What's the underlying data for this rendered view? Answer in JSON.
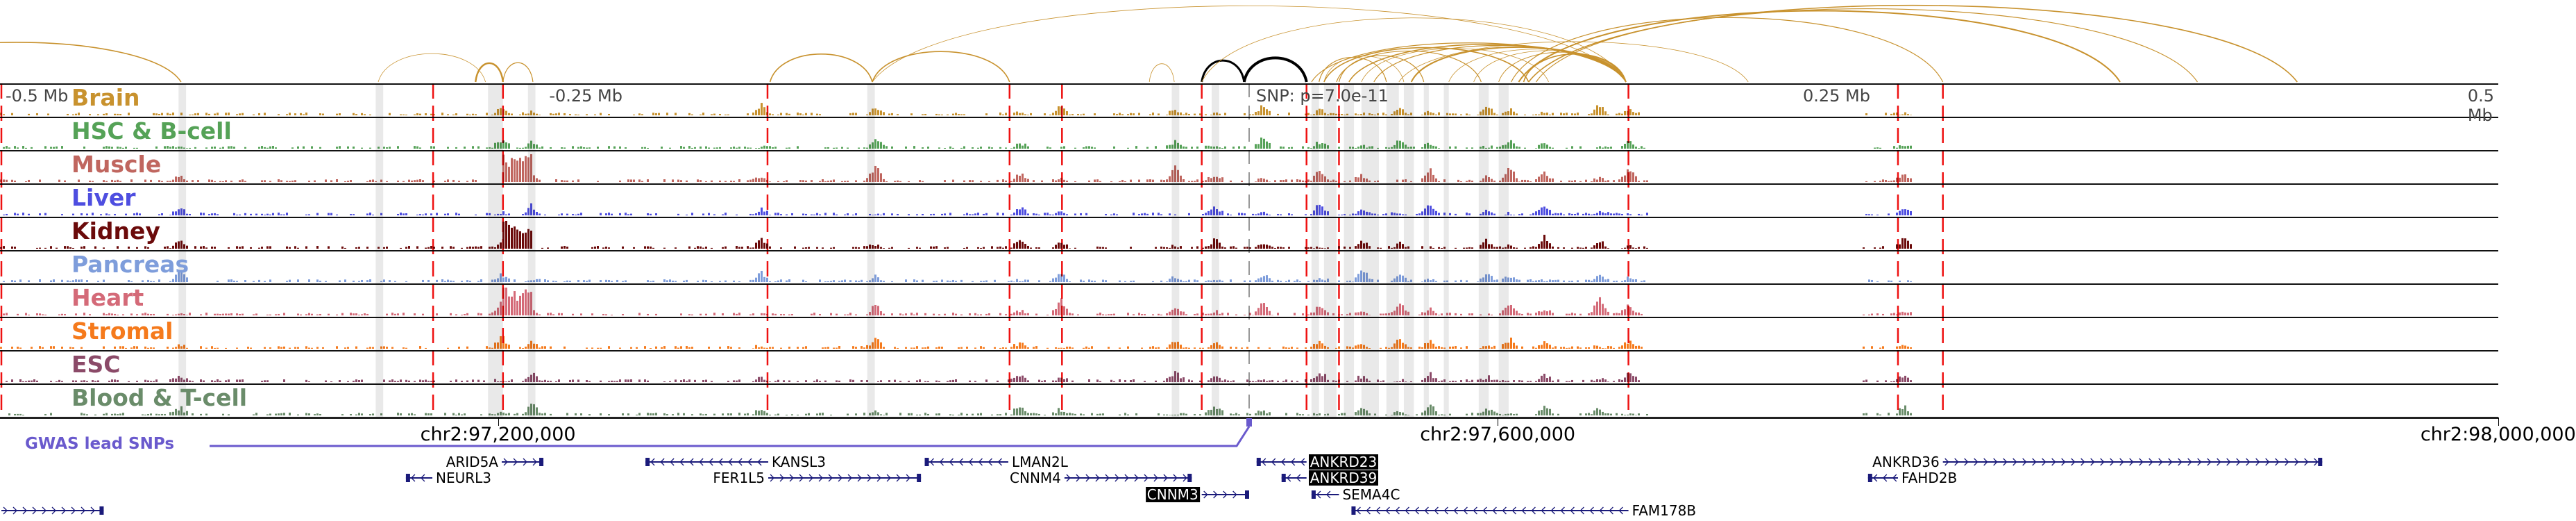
{
  "colors": {
    "arc": "#c8922e",
    "arc_lead": "#000000",
    "red_line": "#ee1111",
    "highlight": "#e3e3e3",
    "gene": "#1a1a7a",
    "gwas": "#6a5acd"
  },
  "ruler": {
    "labels": [
      {
        "text": "-0.5 Mb",
        "kb": -500
      },
      {
        "text": "-0.25 Mb",
        "kb": -250
      },
      {
        "text": "0.25 Mb",
        "kb": 250
      },
      {
        "text": "0.5 Mb",
        "kb": 500
      }
    ]
  },
  "snp": {
    "label": "SNP: p=7.0e-11",
    "kb": 0
  },
  "tracks": [
    {
      "label": "Brain",
      "color": "#c8922e"
    },
    {
      "label": "HSC & B-cell",
      "color": "#55a257"
    },
    {
      "label": "Muscle",
      "color": "#c0665f"
    },
    {
      "label": "Liver",
      "color": "#4e4ee0"
    },
    {
      "label": "Kidney",
      "color": "#6b0a0a"
    },
    {
      "label": "Pancreas",
      "color": "#7e9ddb"
    },
    {
      "label": "Heart",
      "color": "#d46a78"
    },
    {
      "label": "Stromal",
      "color": "#f57a1c"
    },
    {
      "label": "ESC",
      "color": "#8b4a68"
    },
    {
      "label": "Blood & T-cell",
      "color": "#6a8c6a"
    }
  ],
  "red_lines_kb": [
    -500,
    -327,
    -299,
    -193,
    -96,
    -75,
    -19,
    23,
    36,
    152,
    260,
    278
  ],
  "highlights_kb": [
    [
      -429,
      -426
    ],
    [
      -350,
      -347
    ],
    [
      -305,
      -299
    ],
    [
      -289,
      -286
    ],
    [
      -153,
      -150
    ],
    [
      -31,
      -28
    ],
    [
      -15,
      -12
    ],
    [
      25,
      28
    ],
    [
      30,
      35
    ],
    [
      38,
      42
    ],
    [
      45,
      52
    ],
    [
      55,
      60
    ],
    [
      62,
      66
    ],
    [
      70,
      72
    ],
    [
      78,
      80
    ],
    [
      92,
      96
    ],
    [
      100,
      104
    ]
  ],
  "arcs": [
    {
      "s": -560,
      "e": -428,
      "w": 2
    },
    {
      "s": -349,
      "e": -306,
      "w": 1
    },
    {
      "s": -310,
      "e": -299,
      "w": 3
    },
    {
      "s": -299,
      "e": -287,
      "w": 1.5
    },
    {
      "s": -192,
      "e": -151,
      "w": 2
    },
    {
      "s": -151,
      "e": -96,
      "w": 2
    },
    {
      "s": -151,
      "e": 151,
      "w": 1
    },
    {
      "s": -40,
      "e": -30,
      "w": 1
    },
    {
      "s": -19,
      "e": -2,
      "w": 3,
      "lead": true
    },
    {
      "s": -2,
      "e": 23,
      "w": 4,
      "lead": true
    },
    {
      "s": -19,
      "e": 151,
      "w": 1
    },
    {
      "s": 25,
      "e": 151,
      "w": 1.5
    },
    {
      "s": 30,
      "e": 112,
      "w": 2
    },
    {
      "s": 35,
      "e": 93,
      "w": 1.5
    },
    {
      "s": 40,
      "e": 151,
      "w": 2
    },
    {
      "s": 45,
      "e": 120,
      "w": 1
    },
    {
      "s": 50,
      "e": 151,
      "w": 1.5
    },
    {
      "s": 65,
      "e": 151,
      "w": 2.5
    },
    {
      "s": 30,
      "e": 62,
      "w": 1
    },
    {
      "s": 28,
      "e": 55,
      "w": 1.5
    },
    {
      "s": 36,
      "e": 70,
      "w": 1.5
    },
    {
      "s": 80,
      "e": 151,
      "w": 1
    },
    {
      "s": 90,
      "e": 151,
      "w": 1
    },
    {
      "s": 100,
      "e": 151,
      "w": 1.2
    },
    {
      "s": 110,
      "e": 151,
      "w": 2
    },
    {
      "s": 105,
      "e": 278,
      "w": 1.5
    },
    {
      "s": 108,
      "e": 349,
      "w": 2.5
    },
    {
      "s": 112,
      "e": 420,
      "w": 2
    },
    {
      "s": 115,
      "e": 380,
      "w": 1.5
    },
    {
      "s": 60,
      "e": 200,
      "w": 1
    }
  ],
  "axis": {
    "coords": [
      {
        "text": "chr2:97,200,000",
        "kb": -301
      },
      {
        "text": "chr2:97,600,000",
        "kb": 99.6
      },
      {
        "text": "chr2:98,000,000",
        "kb": 500.5
      }
    ]
  },
  "gwas": {
    "label": "GWAS lead SNPs"
  },
  "genes": [
    {
      "name": "ARID5A",
      "s": -299.5,
      "e": -282.8,
      "strand": "+",
      "row": 0,
      "label": "left"
    },
    {
      "name": "NEURL3",
      "s": -337.9,
      "e": -327.3,
      "strand": "-",
      "row": 1,
      "label": "right"
    },
    {
      "name": "KANSL3",
      "s": -241.9,
      "e": -192.7,
      "strand": "-",
      "row": 0,
      "label": "right"
    },
    {
      "name": "FER1L5",
      "s": -192.7,
      "e": -131.5,
      "strand": "+",
      "row": 1,
      "label": "left"
    },
    {
      "name": "LMAN2L",
      "s": -130,
      "e": -96.5,
      "strand": "-",
      "row": 0,
      "label": "right"
    },
    {
      "name": "CNNM4",
      "s": -74,
      "e": -23,
      "strand": "+",
      "row": 1,
      "label": "left"
    },
    {
      "name": "CNNM3",
      "s": -19,
      "e": 0,
      "strand": "+",
      "row": 2,
      "label": "left",
      "highlight": true
    },
    {
      "name": "ANKRD23",
      "s": 3,
      "e": 23,
      "strand": "-",
      "row": 0,
      "label": "right",
      "highlight": true
    },
    {
      "name": "ANKRD39",
      "s": 13,
      "e": 23,
      "strand": "-",
      "row": 1,
      "label": "right",
      "highlight": true
    },
    {
      "name": "SEMA4C",
      "s": 25,
      "e": 36,
      "strand": "-",
      "row": 2,
      "label": "right"
    },
    {
      "name": "FAM178B",
      "s": 41,
      "e": 152,
      "strand": "-",
      "row": 3,
      "label": "right"
    },
    {
      "name": "ANKRD36",
      "s": 278,
      "e": 430,
      "strand": "+",
      "row": 0,
      "label": "left"
    },
    {
      "name": "FAHD2B",
      "s": 248,
      "e": 260,
      "strand": "-",
      "row": 1,
      "label": "right"
    },
    {
      "name": "",
      "s": -500,
      "e": -459,
      "strand": "+",
      "row": 3,
      "label": "none"
    }
  ]
}
